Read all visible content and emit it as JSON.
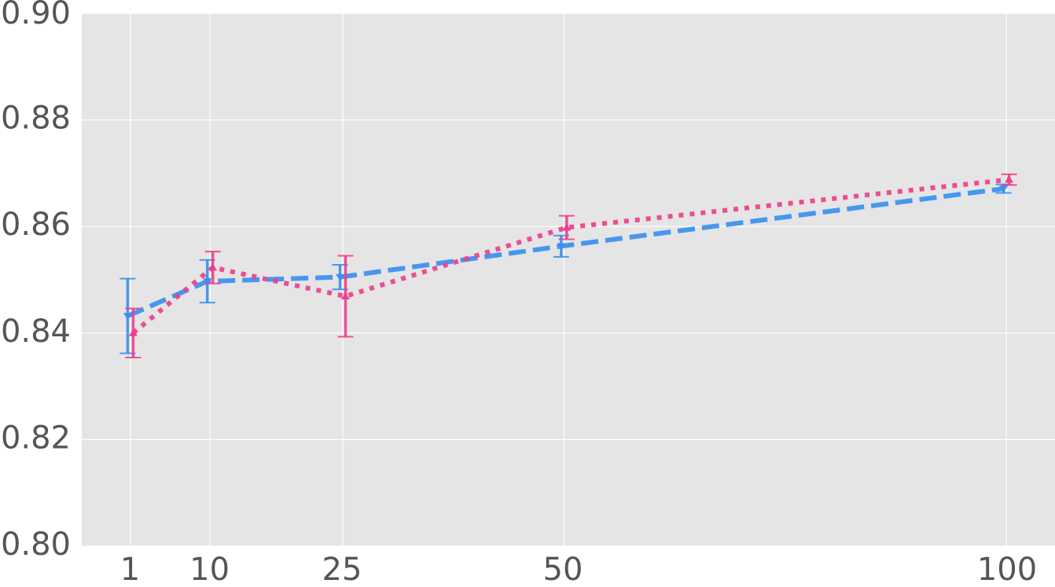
{
  "chart_data": {
    "type": "line",
    "title": "",
    "xlabel": "",
    "ylabel": "",
    "x": [
      1,
      10,
      25,
      50,
      100
    ],
    "x_ticks": [
      "1",
      "10",
      "25",
      "50",
      "100"
    ],
    "xlim": [
      -4.5,
      105.5
    ],
    "ylim": [
      0.8,
      0.9
    ],
    "y_ticks": [
      "0.80",
      "0.82",
      "0.84",
      "0.86",
      "0.88",
      "0.90"
    ],
    "grid": true,
    "legend": "none",
    "series": [
      {
        "color": "#3a8ff0",
        "line_style": "dashed",
        "marker": "triangle-down",
        "values": [
          0.8432,
          0.8497,
          0.8505,
          0.8563,
          0.8671
        ],
        "errors": [
          0.007,
          0.004,
          0.0023,
          0.002,
          0.0008
        ]
      },
      {
        "color": "#ee3f8c",
        "line_style": "dotted",
        "marker": "triangle-up",
        "values": [
          0.84,
          0.8523,
          0.8469,
          0.8598,
          0.8688
        ],
        "errors": [
          0.0046,
          0.003,
          0.0076,
          0.0022,
          0.001
        ]
      }
    ]
  }
}
